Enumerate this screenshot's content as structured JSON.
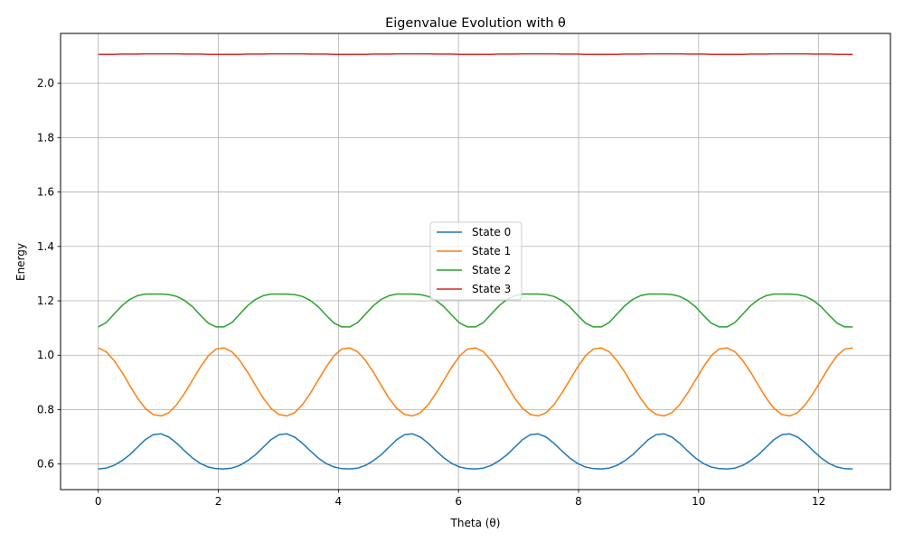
{
  "chart_data": {
    "type": "line",
    "title": "Eigenvalue Evolution with θ",
    "xlabel": "Theta (θ)",
    "ylabel": "Energy",
    "xlim": [
      -0.628,
      13.195
    ],
    "ylim": [
      0.506,
      2.183
    ],
    "x_ticks": [
      0,
      2,
      4,
      6,
      8,
      10,
      12
    ],
    "x_tick_labels": [
      "0",
      "2",
      "4",
      "6",
      "8",
      "10",
      "12"
    ],
    "y_ticks": [
      0.6,
      0.8,
      1.0,
      1.2,
      1.4,
      1.6,
      1.8,
      2.0
    ],
    "y_tick_labels": [
      "0.6",
      "0.8",
      "1.0",
      "1.2",
      "1.4",
      "1.6",
      "1.8",
      "2.0"
    ],
    "grid": true,
    "legend_position": "center",
    "x": [
      0.0,
      0.131,
      0.262,
      0.393,
      0.524,
      0.654,
      0.785,
      0.916,
      1.047,
      1.178,
      1.309,
      1.44,
      1.571,
      1.702,
      1.833,
      1.963,
      2.094,
      2.225,
      2.356,
      2.487,
      2.618,
      2.749,
      2.88,
      3.011,
      3.142,
      3.272,
      3.403,
      3.534,
      3.665,
      3.796,
      3.927,
      4.058,
      4.189,
      4.32,
      4.451,
      4.581,
      4.712,
      4.843,
      4.974,
      5.105,
      5.236,
      5.367,
      5.498,
      5.629,
      5.76,
      5.89,
      6.021,
      6.152,
      6.283,
      6.414,
      6.545,
      6.676,
      6.807,
      6.938,
      7.069,
      7.199,
      7.33,
      7.461,
      7.592,
      7.723,
      7.854,
      7.985,
      8.116,
      8.247,
      8.378,
      8.508,
      8.639,
      8.77,
      8.901,
      9.032,
      9.163,
      9.294,
      9.425,
      9.556,
      9.687,
      9.817,
      9.948,
      10.079,
      10.21,
      10.341,
      10.472,
      10.603,
      10.734,
      10.865,
      10.996,
      11.126,
      11.257,
      11.388,
      11.519,
      11.65,
      11.781,
      11.912,
      12.043,
      12.174,
      12.305,
      12.435,
      12.566
    ],
    "series": [
      {
        "name": "State 0",
        "color": "#1f77b4",
        "values": [
          0.582,
          0.585,
          0.595,
          0.612,
          0.634,
          0.662,
          0.69,
          0.708,
          0.711,
          0.699,
          0.676,
          0.648,
          0.622,
          0.602,
          0.589,
          0.583,
          0.582,
          0.585,
          0.595,
          0.612,
          0.634,
          0.662,
          0.69,
          0.708,
          0.711,
          0.699,
          0.676,
          0.648,
          0.622,
          0.602,
          0.589,
          0.583,
          0.582,
          0.585,
          0.595,
          0.612,
          0.634,
          0.662,
          0.69,
          0.708,
          0.711,
          0.699,
          0.676,
          0.648,
          0.622,
          0.602,
          0.589,
          0.583,
          0.582,
          0.585,
          0.595,
          0.612,
          0.634,
          0.662,
          0.69,
          0.708,
          0.711,
          0.699,
          0.676,
          0.648,
          0.622,
          0.602,
          0.589,
          0.583,
          0.582,
          0.585,
          0.595,
          0.612,
          0.634,
          0.662,
          0.69,
          0.708,
          0.711,
          0.699,
          0.676,
          0.648,
          0.622,
          0.602,
          0.589,
          0.583,
          0.582,
          0.585,
          0.595,
          0.612,
          0.634,
          0.662,
          0.69,
          0.708,
          0.711,
          0.699,
          0.676,
          0.648,
          0.622,
          0.602,
          0.589,
          0.583,
          0.582
        ]
      },
      {
        "name": "State 1",
        "color": "#ff7f0e",
        "values": [
          1.027,
          1.013,
          0.981,
          0.938,
          0.889,
          0.842,
          0.804,
          0.782,
          0.777,
          0.789,
          0.819,
          0.861,
          0.909,
          0.957,
          0.998,
          1.023,
          1.027,
          1.013,
          0.981,
          0.938,
          0.889,
          0.842,
          0.804,
          0.782,
          0.777,
          0.789,
          0.819,
          0.861,
          0.909,
          0.957,
          0.998,
          1.023,
          1.027,
          1.013,
          0.981,
          0.938,
          0.889,
          0.842,
          0.804,
          0.782,
          0.777,
          0.789,
          0.819,
          0.861,
          0.909,
          0.957,
          0.998,
          1.023,
          1.027,
          1.013,
          0.981,
          0.938,
          0.889,
          0.842,
          0.804,
          0.782,
          0.777,
          0.789,
          0.819,
          0.861,
          0.909,
          0.957,
          0.998,
          1.023,
          1.027,
          1.013,
          0.981,
          0.938,
          0.889,
          0.842,
          0.804,
          0.782,
          0.777,
          0.789,
          0.819,
          0.861,
          0.909,
          0.957,
          0.998,
          1.023,
          1.027,
          1.013,
          0.981,
          0.938,
          0.889,
          0.842,
          0.804,
          0.782,
          0.777,
          0.789,
          0.819,
          0.861,
          0.909,
          0.957,
          0.998,
          1.023,
          1.027
        ]
      },
      {
        "name": "State 2",
        "color": "#2ca02c",
        "values": [
          1.104,
          1.12,
          1.151,
          1.182,
          1.205,
          1.219,
          1.225,
          1.225,
          1.225,
          1.223,
          1.216,
          1.201,
          1.178,
          1.147,
          1.118,
          1.104,
          1.104,
          1.12,
          1.151,
          1.182,
          1.205,
          1.219,
          1.225,
          1.225,
          1.225,
          1.223,
          1.216,
          1.201,
          1.178,
          1.147,
          1.118,
          1.104,
          1.104,
          1.12,
          1.151,
          1.182,
          1.205,
          1.219,
          1.225,
          1.225,
          1.225,
          1.223,
          1.216,
          1.201,
          1.178,
          1.147,
          1.118,
          1.104,
          1.104,
          1.12,
          1.151,
          1.182,
          1.205,
          1.219,
          1.225,
          1.225,
          1.225,
          1.223,
          1.216,
          1.201,
          1.178,
          1.147,
          1.118,
          1.104,
          1.104,
          1.12,
          1.151,
          1.182,
          1.205,
          1.219,
          1.225,
          1.225,
          1.225,
          1.223,
          1.216,
          1.201,
          1.178,
          1.147,
          1.118,
          1.104,
          1.104,
          1.12,
          1.151,
          1.182,
          1.205,
          1.219,
          1.225,
          1.225,
          1.225,
          1.223,
          1.216,
          1.201,
          1.178,
          1.147,
          1.118,
          1.104,
          1.104
        ]
      },
      {
        "name": "State 3",
        "color": "#d62728",
        "values": [
          2.106,
          2.106,
          2.106,
          2.107,
          2.107,
          2.107,
          2.108,
          2.108,
          2.108,
          2.108,
          2.108,
          2.107,
          2.107,
          2.107,
          2.106,
          2.106,
          2.106,
          2.106,
          2.106,
          2.107,
          2.107,
          2.107,
          2.108,
          2.108,
          2.108,
          2.108,
          2.108,
          2.107,
          2.107,
          2.107,
          2.106,
          2.106,
          2.106,
          2.106,
          2.106,
          2.107,
          2.107,
          2.107,
          2.108,
          2.108,
          2.108,
          2.108,
          2.108,
          2.107,
          2.107,
          2.107,
          2.106,
          2.106,
          2.106,
          2.106,
          2.106,
          2.107,
          2.107,
          2.107,
          2.108,
          2.108,
          2.108,
          2.108,
          2.108,
          2.107,
          2.107,
          2.107,
          2.106,
          2.106,
          2.106,
          2.106,
          2.106,
          2.107,
          2.107,
          2.107,
          2.108,
          2.108,
          2.108,
          2.108,
          2.108,
          2.107,
          2.107,
          2.107,
          2.106,
          2.106,
          2.106,
          2.106,
          2.106,
          2.107,
          2.107,
          2.107,
          2.108,
          2.108,
          2.108,
          2.108,
          2.108,
          2.107,
          2.107,
          2.107,
          2.106,
          2.106,
          2.106
        ]
      }
    ]
  }
}
